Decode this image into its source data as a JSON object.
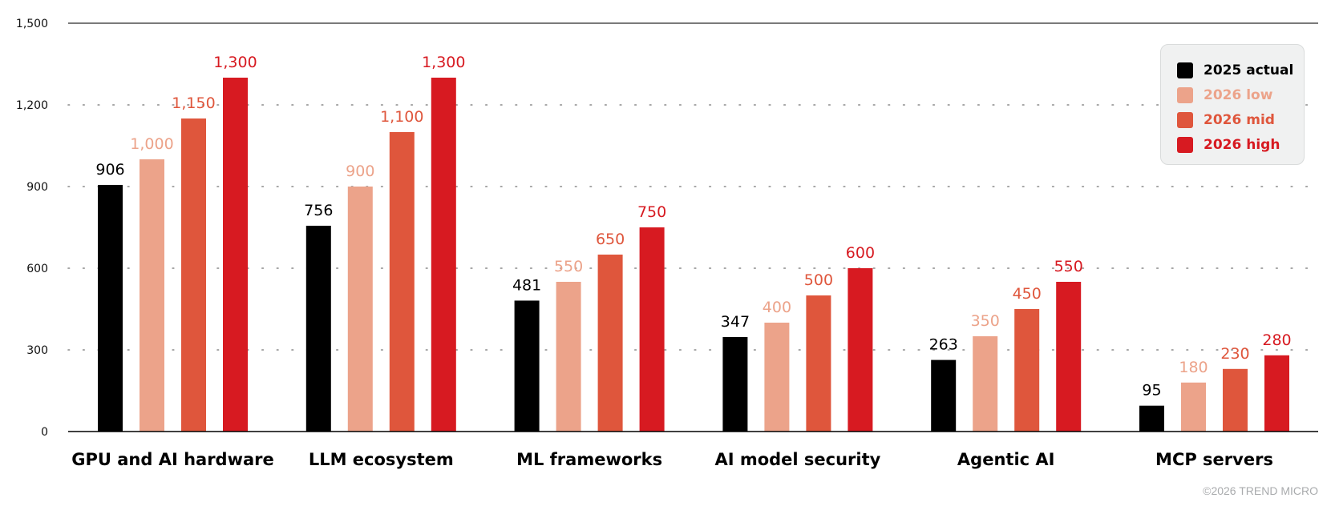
{
  "chart_data": {
    "type": "bar",
    "categories": [
      "GPU and AI hardware",
      "LLM ecosystem",
      "ML frameworks",
      "AI model security",
      "Agentic AI",
      "MCP servers"
    ],
    "series": [
      {
        "name": "2025 actual",
        "color": "#000000",
        "values": [
          906,
          756,
          481,
          347,
          263,
          95
        ],
        "labels": [
          "906",
          "756",
          "481",
          "347",
          "263",
          "95"
        ]
      },
      {
        "name": "2026 low",
        "color": "#eca38a",
        "values": [
          1000,
          900,
          550,
          400,
          350,
          180
        ],
        "labels": [
          "1,000",
          "900",
          "550",
          "400",
          "350",
          "180"
        ]
      },
      {
        "name": "2026 mid",
        "color": "#df563c",
        "values": [
          1150,
          1100,
          650,
          500,
          450,
          230
        ],
        "labels": [
          "1,150",
          "1,100",
          "650",
          "500",
          "450",
          "230"
        ]
      },
      {
        "name": "2026 high",
        "color": "#d71a21",
        "values": [
          1300,
          1300,
          750,
          600,
          550,
          280
        ],
        "labels": [
          "1,300",
          "1,300",
          "750",
          "600",
          "550",
          "280"
        ]
      }
    ],
    "yticks": [
      0,
      300,
      600,
      900,
      1200,
      1500
    ],
    "ytick_labels": [
      "0",
      "300",
      "600",
      "900",
      "1,200",
      "1,500"
    ],
    "ylim": [
      0,
      1500
    ],
    "grid": "dotted horizontal",
    "legend_position": "top-right",
    "title": "",
    "xlabel": "",
    "ylabel": ""
  },
  "copyright": "©2026 TREND MICRO"
}
